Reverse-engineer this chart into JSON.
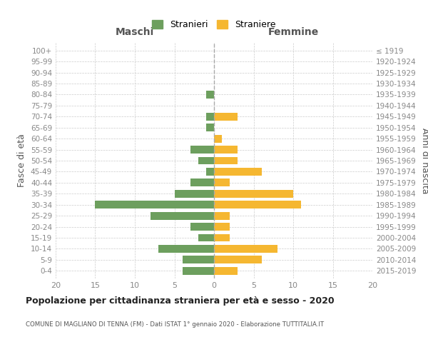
{
  "age_groups": [
    "100+",
    "95-99",
    "90-94",
    "85-89",
    "80-84",
    "75-79",
    "70-74",
    "65-69",
    "60-64",
    "55-59",
    "50-54",
    "45-49",
    "40-44",
    "35-39",
    "30-34",
    "25-29",
    "20-24",
    "15-19",
    "10-14",
    "5-9",
    "0-4"
  ],
  "birth_years": [
    "≤ 1919",
    "1920-1924",
    "1925-1929",
    "1930-1934",
    "1935-1939",
    "1940-1944",
    "1945-1949",
    "1950-1954",
    "1955-1959",
    "1960-1964",
    "1965-1969",
    "1970-1974",
    "1975-1979",
    "1980-1984",
    "1985-1989",
    "1990-1994",
    "1995-1999",
    "2000-2004",
    "2005-2009",
    "2010-2014",
    "2015-2019"
  ],
  "maschi": [
    0,
    0,
    0,
    0,
    1,
    0,
    1,
    1,
    0,
    3,
    2,
    1,
    3,
    5,
    15,
    8,
    3,
    2,
    7,
    4,
    4
  ],
  "femmine": [
    0,
    0,
    0,
    0,
    0,
    0,
    3,
    0,
    1,
    3,
    3,
    6,
    2,
    10,
    11,
    2,
    2,
    2,
    8,
    6,
    3
  ],
  "maschi_color": "#6d9f5e",
  "femmine_color": "#f5b731",
  "title": "Popolazione per cittadinanza straniera per età e sesso - 2020",
  "subtitle": "COMUNE DI MAGLIANO DI TENNA (FM) - Dati ISTAT 1° gennaio 2020 - Elaborazione TUTTITALIA.IT",
  "xlabel_left": "Maschi",
  "xlabel_right": "Femmine",
  "ylabel_left": "Fasce di età",
  "ylabel_right": "Anni di nascita",
  "legend_stranieri": "Stranieri",
  "legend_straniere": "Straniere",
  "xlim": 20,
  "background_color": "#ffffff",
  "grid_color": "#cccccc",
  "tick_color": "#888888",
  "bar_height": 0.7
}
